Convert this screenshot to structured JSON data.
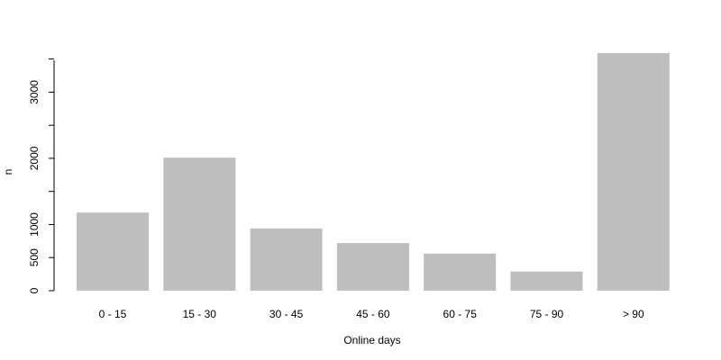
{
  "chart_data": {
    "type": "bar",
    "title": "",
    "xlabel": "Online days",
    "ylabel": "n",
    "categories": [
      "0 - 15",
      "15 - 30",
      "30 - 45",
      "45 - 60",
      "60 - 75",
      "75 - 90",
      "> 90"
    ],
    "values": [
      1180,
      2010,
      940,
      720,
      560,
      290,
      3590
    ],
    "y_ticks": [
      0,
      500,
      1000,
      2000,
      3000
    ],
    "y_tick_labels": [
      "0",
      "500",
      "1000",
      "2000",
      "3000"
    ],
    "ylim": [
      0,
      3590
    ],
    "grid": false,
    "bar_color": "#bebebe",
    "axis_color": "#000000"
  }
}
